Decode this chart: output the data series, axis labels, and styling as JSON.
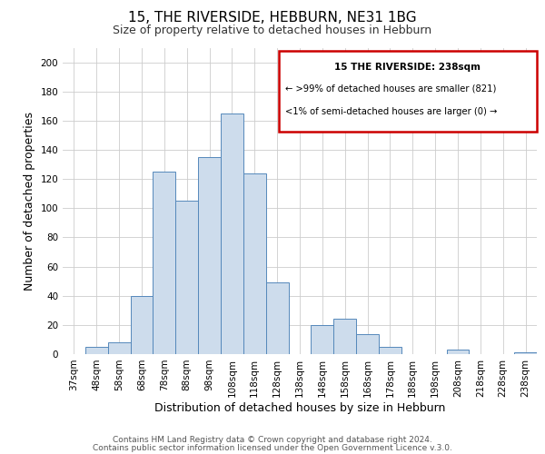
{
  "title": "15, THE RIVERSIDE, HEBBURN, NE31 1BG",
  "subtitle": "Size of property relative to detached houses in Hebburn",
  "xlabel": "Distribution of detached houses by size in Hebburn",
  "ylabel": "Number of detached properties",
  "bar_labels": [
    "37sqm",
    "48sqm",
    "58sqm",
    "68sqm",
    "78sqm",
    "88sqm",
    "98sqm",
    "108sqm",
    "118sqm",
    "128sqm",
    "138sqm",
    "148sqm",
    "158sqm",
    "168sqm",
    "178sqm",
    "188sqm",
    "198sqm",
    "208sqm",
    "218sqm",
    "228sqm",
    "238sqm"
  ],
  "bar_values": [
    0,
    5,
    8,
    40,
    125,
    105,
    135,
    165,
    124,
    49,
    0,
    20,
    24,
    14,
    5,
    0,
    0,
    3,
    0,
    0,
    1
  ],
  "bar_color": "#cddcec",
  "bar_edge_color": "#5588bb",
  "ylim": [
    0,
    210
  ],
  "yticks": [
    0,
    20,
    40,
    60,
    80,
    100,
    120,
    140,
    160,
    180,
    200
  ],
  "annotation_box_title": "15 THE RIVERSIDE: 238sqm",
  "annotation_line1": "← >99% of detached houses are smaller (821)",
  "annotation_line2": "<1% of semi-detached houses are larger (0) →",
  "annotation_box_edge_color": "#cc0000",
  "footer_line1": "Contains HM Land Registry data © Crown copyright and database right 2024.",
  "footer_line2": "Contains public sector information licensed under the Open Government Licence v.3.0.",
  "title_fontsize": 11,
  "subtitle_fontsize": 9,
  "axis_label_fontsize": 9,
  "tick_fontsize": 7.5,
  "footer_fontsize": 6.5,
  "background_color": "#ffffff",
  "grid_color": "#cccccc"
}
